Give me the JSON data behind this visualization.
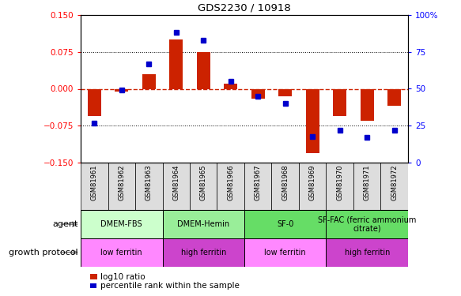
{
  "title": "GDS2230 / 10918",
  "samples": [
    "GSM81961",
    "GSM81962",
    "GSM81963",
    "GSM81964",
    "GSM81965",
    "GSM81966",
    "GSM81967",
    "GSM81968",
    "GSM81969",
    "GSM81970",
    "GSM81971",
    "GSM81972"
  ],
  "log10_ratio": [
    -0.055,
    -0.005,
    0.03,
    0.1,
    0.075,
    0.01,
    -0.02,
    -0.015,
    -0.13,
    -0.055,
    -0.065,
    -0.035
  ],
  "percentile_rank": [
    27,
    49,
    67,
    88,
    83,
    55,
    45,
    40,
    18,
    22,
    17,
    22
  ],
  "agent_groups": [
    {
      "label": "DMEM-FBS",
      "start": 0,
      "end": 3,
      "color": "#ccffcc"
    },
    {
      "label": "DMEM-Hemin",
      "start": 3,
      "end": 6,
      "color": "#99ee99"
    },
    {
      "label": "SF-0",
      "start": 6,
      "end": 9,
      "color": "#66dd66"
    },
    {
      "label": "SF-FAC (ferric ammonium\ncitrate)",
      "start": 9,
      "end": 12,
      "color": "#66dd66"
    }
  ],
  "growth_groups": [
    {
      "label": "low ferritin",
      "start": 0,
      "end": 3,
      "color": "#ff88ff"
    },
    {
      "label": "high ferritin",
      "start": 3,
      "end": 6,
      "color": "#cc44cc"
    },
    {
      "label": "low ferritin",
      "start": 6,
      "end": 9,
      "color": "#ff88ff"
    },
    {
      "label": "high ferritin",
      "start": 9,
      "end": 12,
      "color": "#cc44cc"
    }
  ],
  "ylim_left": [
    -0.15,
    0.15
  ],
  "ylim_right": [
    0,
    100
  ],
  "yticks_left": [
    -0.15,
    -0.075,
    0,
    0.075,
    0.15
  ],
  "yticks_right": [
    0,
    25,
    50,
    75,
    100
  ],
  "bar_color": "#cc2200",
  "dot_color": "#0000cc",
  "hline_color": "#cc2200",
  "label_bg": "#dddddd",
  "legend_bar_color": "#cc2200",
  "legend_dot_color": "#0000cc",
  "bar_width": 0.5
}
